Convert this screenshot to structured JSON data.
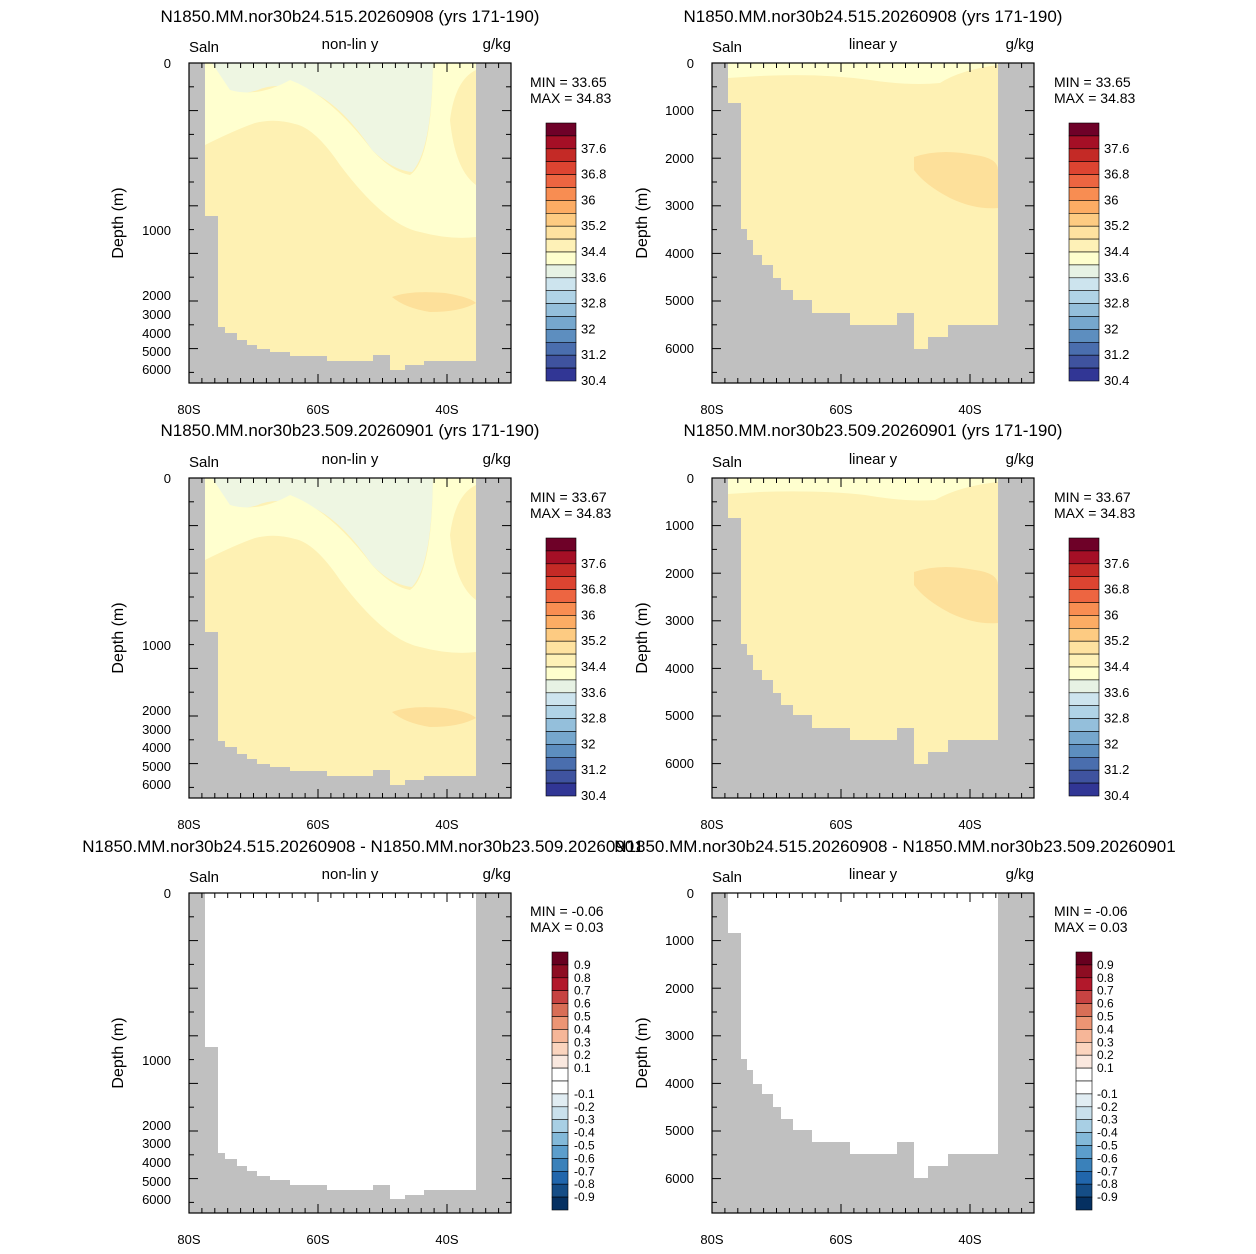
{
  "colors": {
    "land": "#c0c0c0",
    "sal_c1": "#eef6e2",
    "sal_c2": "#ffffcf",
    "sal_c3": "#feedaa",
    "sal_c4": "#fde09a",
    "salinity_scale": [
      "#313695",
      "#3f539f",
      "#4a6eae",
      "#5d8ebf",
      "#76a7cd",
      "#94bfdb",
      "#b0d3e6",
      "#cde4ee",
      "#e7f2e4",
      "#fefecd",
      "#fef1b7",
      "#fee2a0",
      "#fdcb82",
      "#fcac64",
      "#f88d52",
      "#ed6541",
      "#dd4431",
      "#c42a26",
      "#a50f26",
      "#6e0128"
    ],
    "diff_scale": [
      "#053061",
      "#154d86",
      "#2166ac",
      "#3a81ba",
      "#5c9ecc",
      "#83b9d9",
      "#a8cfe4",
      "#c9e0ec",
      "#e1edf3",
      "#ffffff",
      "#ffffff",
      "#fae8df",
      "#fbd4be",
      "#f6b698",
      "#ec9574",
      "#d86e56",
      "#c74342",
      "#b2182b",
      "#8d0d22",
      "#67001f"
    ]
  },
  "titles": {
    "row1": "N1850.MM.nor30b24.515.20260908 (yrs 171-190)",
    "row2": "N1850.MM.nor30b23.509.20260901 (yrs 171-190)",
    "row3": "N1850.MM.nor30b24.515.20260908 - N1850.MM.nor30b23.509.20260901"
  },
  "labels": {
    "var": "Saln",
    "nonlin": "non-lin y",
    "linear": "linear y",
    "units": "g/kg",
    "ylabel": "Depth (m)"
  },
  "chart_data": [
    {
      "id": "p1",
      "type": "heatmap",
      "title": "N1850.MM.nor30b24.515.20260908 (yrs 171-190)",
      "variable": "Saln",
      "units": "g/kg",
      "yscale": "non-lin y",
      "ylabel": "Depth (m)",
      "x_ticks": [
        "80S",
        "60S",
        "40S"
      ],
      "y_ticks": [
        "0",
        "1000",
        "2000",
        "3000",
        "4000",
        "5000",
        "6000"
      ],
      "min_label": "MIN =  33.65",
      "max_label": "MAX =  34.83",
      "min": 33.65,
      "max": 34.83,
      "colorbar_labels": [
        "37.6",
        "36.8",
        "36",
        "35.2",
        "34.4",
        "33.6",
        "32.8",
        "32",
        "31.2",
        "30.4"
      ]
    },
    {
      "id": "p2",
      "type": "heatmap",
      "title": "N1850.MM.nor30b24.515.20260908 (yrs 171-190)",
      "variable": "Saln",
      "units": "g/kg",
      "yscale": "linear y",
      "ylabel": "Depth (m)",
      "x_ticks": [
        "80S",
        "60S",
        "40S"
      ],
      "y_ticks": [
        "0",
        "1000",
        "2000",
        "3000",
        "4000",
        "5000",
        "6000"
      ],
      "min_label": "MIN =  33.65",
      "max_label": "MAX =  34.83",
      "min": 33.65,
      "max": 34.83,
      "colorbar_labels": [
        "37.6",
        "36.8",
        "36",
        "35.2",
        "34.4",
        "33.6",
        "32.8",
        "32",
        "31.2",
        "30.4"
      ]
    },
    {
      "id": "p3",
      "type": "heatmap",
      "title": "N1850.MM.nor30b23.509.20260901 (yrs 171-190)",
      "variable": "Saln",
      "units": "g/kg",
      "yscale": "non-lin y",
      "ylabel": "Depth (m)",
      "x_ticks": [
        "80S",
        "60S",
        "40S"
      ],
      "y_ticks": [
        "0",
        "1000",
        "2000",
        "3000",
        "4000",
        "5000",
        "6000"
      ],
      "min_label": "MIN =  33.67",
      "max_label": "MAX =  34.83",
      "min": 33.67,
      "max": 34.83,
      "colorbar_labels": [
        "37.6",
        "36.8",
        "36",
        "35.2",
        "34.4",
        "33.6",
        "32.8",
        "32",
        "31.2",
        "30.4"
      ]
    },
    {
      "id": "p4",
      "type": "heatmap",
      "title": "N1850.MM.nor30b23.509.20260901 (yrs 171-190)",
      "variable": "Saln",
      "units": "g/kg",
      "yscale": "linear y",
      "ylabel": "Depth (m)",
      "x_ticks": [
        "80S",
        "60S",
        "40S"
      ],
      "y_ticks": [
        "0",
        "1000",
        "2000",
        "3000",
        "4000",
        "5000",
        "6000"
      ],
      "min_label": "MIN =  33.67",
      "max_label": "MAX =  34.83",
      "min": 33.67,
      "max": 34.83,
      "colorbar_labels": [
        "37.6",
        "36.8",
        "36",
        "35.2",
        "34.4",
        "33.6",
        "32.8",
        "32",
        "31.2",
        "30.4"
      ]
    },
    {
      "id": "p5",
      "type": "heatmap",
      "title": "N1850.MM.nor30b24.515.20260908 - N1850.MM.nor30b23.509.20260901",
      "variable": "Saln",
      "units": "g/kg",
      "yscale": "non-lin y",
      "ylabel": "Depth (m)",
      "x_ticks": [
        "80S",
        "60S",
        "40S"
      ],
      "y_ticks": [
        "0",
        "1000",
        "2000",
        "3000",
        "4000",
        "5000",
        "6000"
      ],
      "min_label": "MIN =  -0.06",
      "max_label": "MAX =   0.03",
      "min": -0.06,
      "max": 0.03,
      "colorbar_labels": [
        "0.9",
        "0.8",
        "0.7",
        "0.6",
        "0.5",
        "0.4",
        "0.3",
        "0.2",
        "0.1",
        "-0.1",
        "-0.2",
        "-0.3",
        "-0.4",
        "-0.5",
        "-0.6",
        "-0.7",
        "-0.8",
        "-0.9"
      ]
    },
    {
      "id": "p6",
      "type": "heatmap",
      "title": "N1850.MM.nor30b24.515.20260908 - N1850.MM.nor30b23.509.20260901",
      "variable": "Saln",
      "units": "g/kg",
      "yscale": "linear y",
      "ylabel": "Depth (m)",
      "x_ticks": [
        "80S",
        "60S",
        "40S"
      ],
      "y_ticks": [
        "0",
        "1000",
        "2000",
        "3000",
        "4000",
        "5000",
        "6000"
      ],
      "min_label": "MIN =  -0.06",
      "max_label": "MAX =   0.03",
      "min": -0.06,
      "max": 0.03,
      "colorbar_labels": [
        "0.9",
        "0.8",
        "0.7",
        "0.6",
        "0.5",
        "0.4",
        "0.3",
        "0.2",
        "0.1",
        "-0.1",
        "-0.2",
        "-0.3",
        "-0.4",
        "-0.5",
        "-0.6",
        "-0.7",
        "-0.8",
        "-0.9"
      ]
    }
  ]
}
